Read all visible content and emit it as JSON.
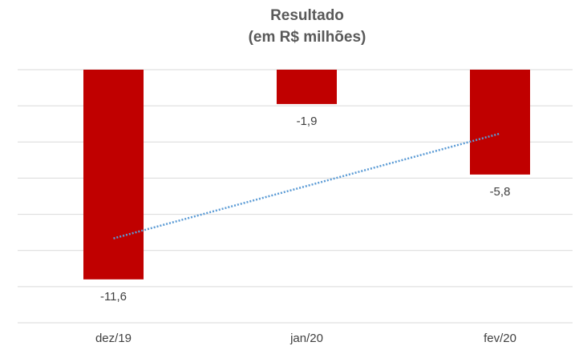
{
  "chart_data": {
    "type": "bar",
    "title": [
      "Resultado",
      "(em R$ milhões)"
    ],
    "categories": [
      "dez/19",
      "jan/20",
      "fev/20"
    ],
    "values": [
      -11.6,
      -1.9,
      -5.8
    ],
    "value_labels": [
      "-11,6",
      "-1,9",
      "-5,8"
    ],
    "color": "#c00000",
    "ylim": [
      -14,
      0
    ],
    "yticks": [
      -14,
      -12,
      -10,
      -8,
      -6,
      -4,
      -2,
      0
    ],
    "grid": true,
    "trendline": {
      "type": "linear",
      "color": "#5b9bd5"
    }
  }
}
